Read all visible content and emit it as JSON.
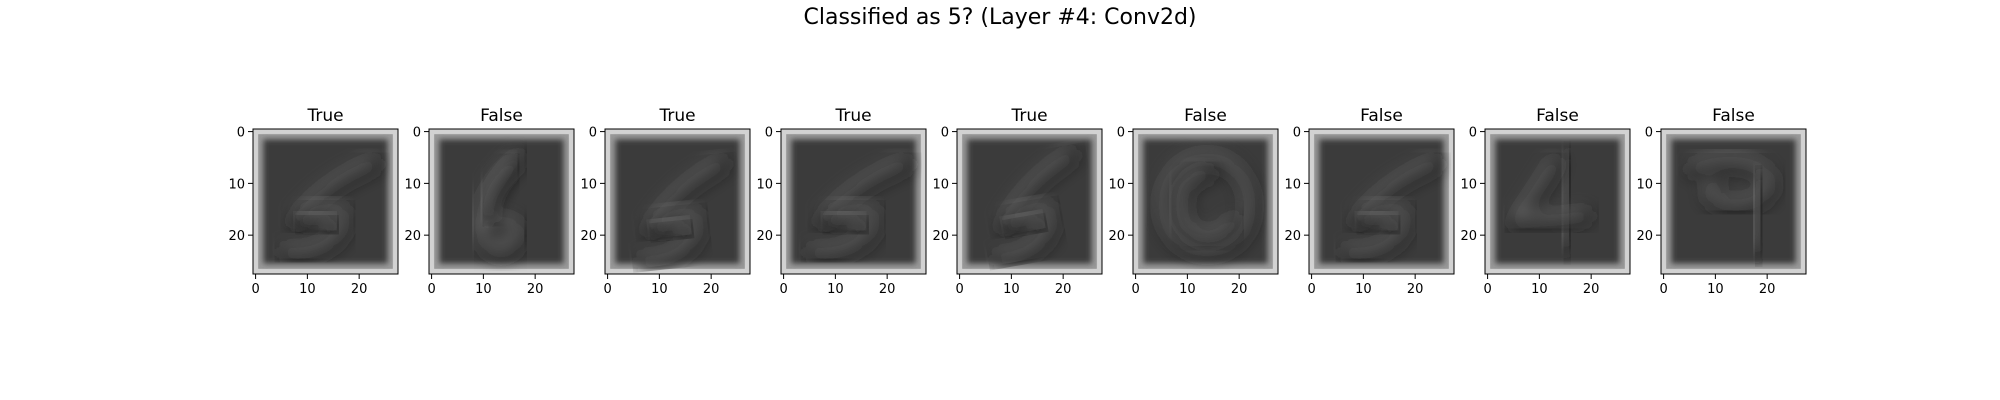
{
  "figure": {
    "suptitle": "Classified as 5? (Layer #4: Conv2d)"
  },
  "chart_data": {
    "type": "heatmap",
    "title": "Classified as 5? (Layer #4: Conv2d)",
    "colormap": "gray",
    "image_size": [
      28,
      28
    ],
    "x_ticks": [
      "0",
      "10",
      "20"
    ],
    "y_ticks": [
      "0",
      "10",
      "20"
    ],
    "panels": [
      {
        "title": "True",
        "depicted_digit": "5"
      },
      {
        "title": "False",
        "depicted_digit": "6"
      },
      {
        "title": "True",
        "depicted_digit": "5"
      },
      {
        "title": "True",
        "depicted_digit": "5"
      },
      {
        "title": "True",
        "depicted_digit": "5"
      },
      {
        "title": "False",
        "depicted_digit": "0"
      },
      {
        "title": "False",
        "depicted_digit": "5"
      },
      {
        "title": "False",
        "depicted_digit": "4"
      },
      {
        "title": "False",
        "depicted_digit": "9"
      }
    ]
  }
}
